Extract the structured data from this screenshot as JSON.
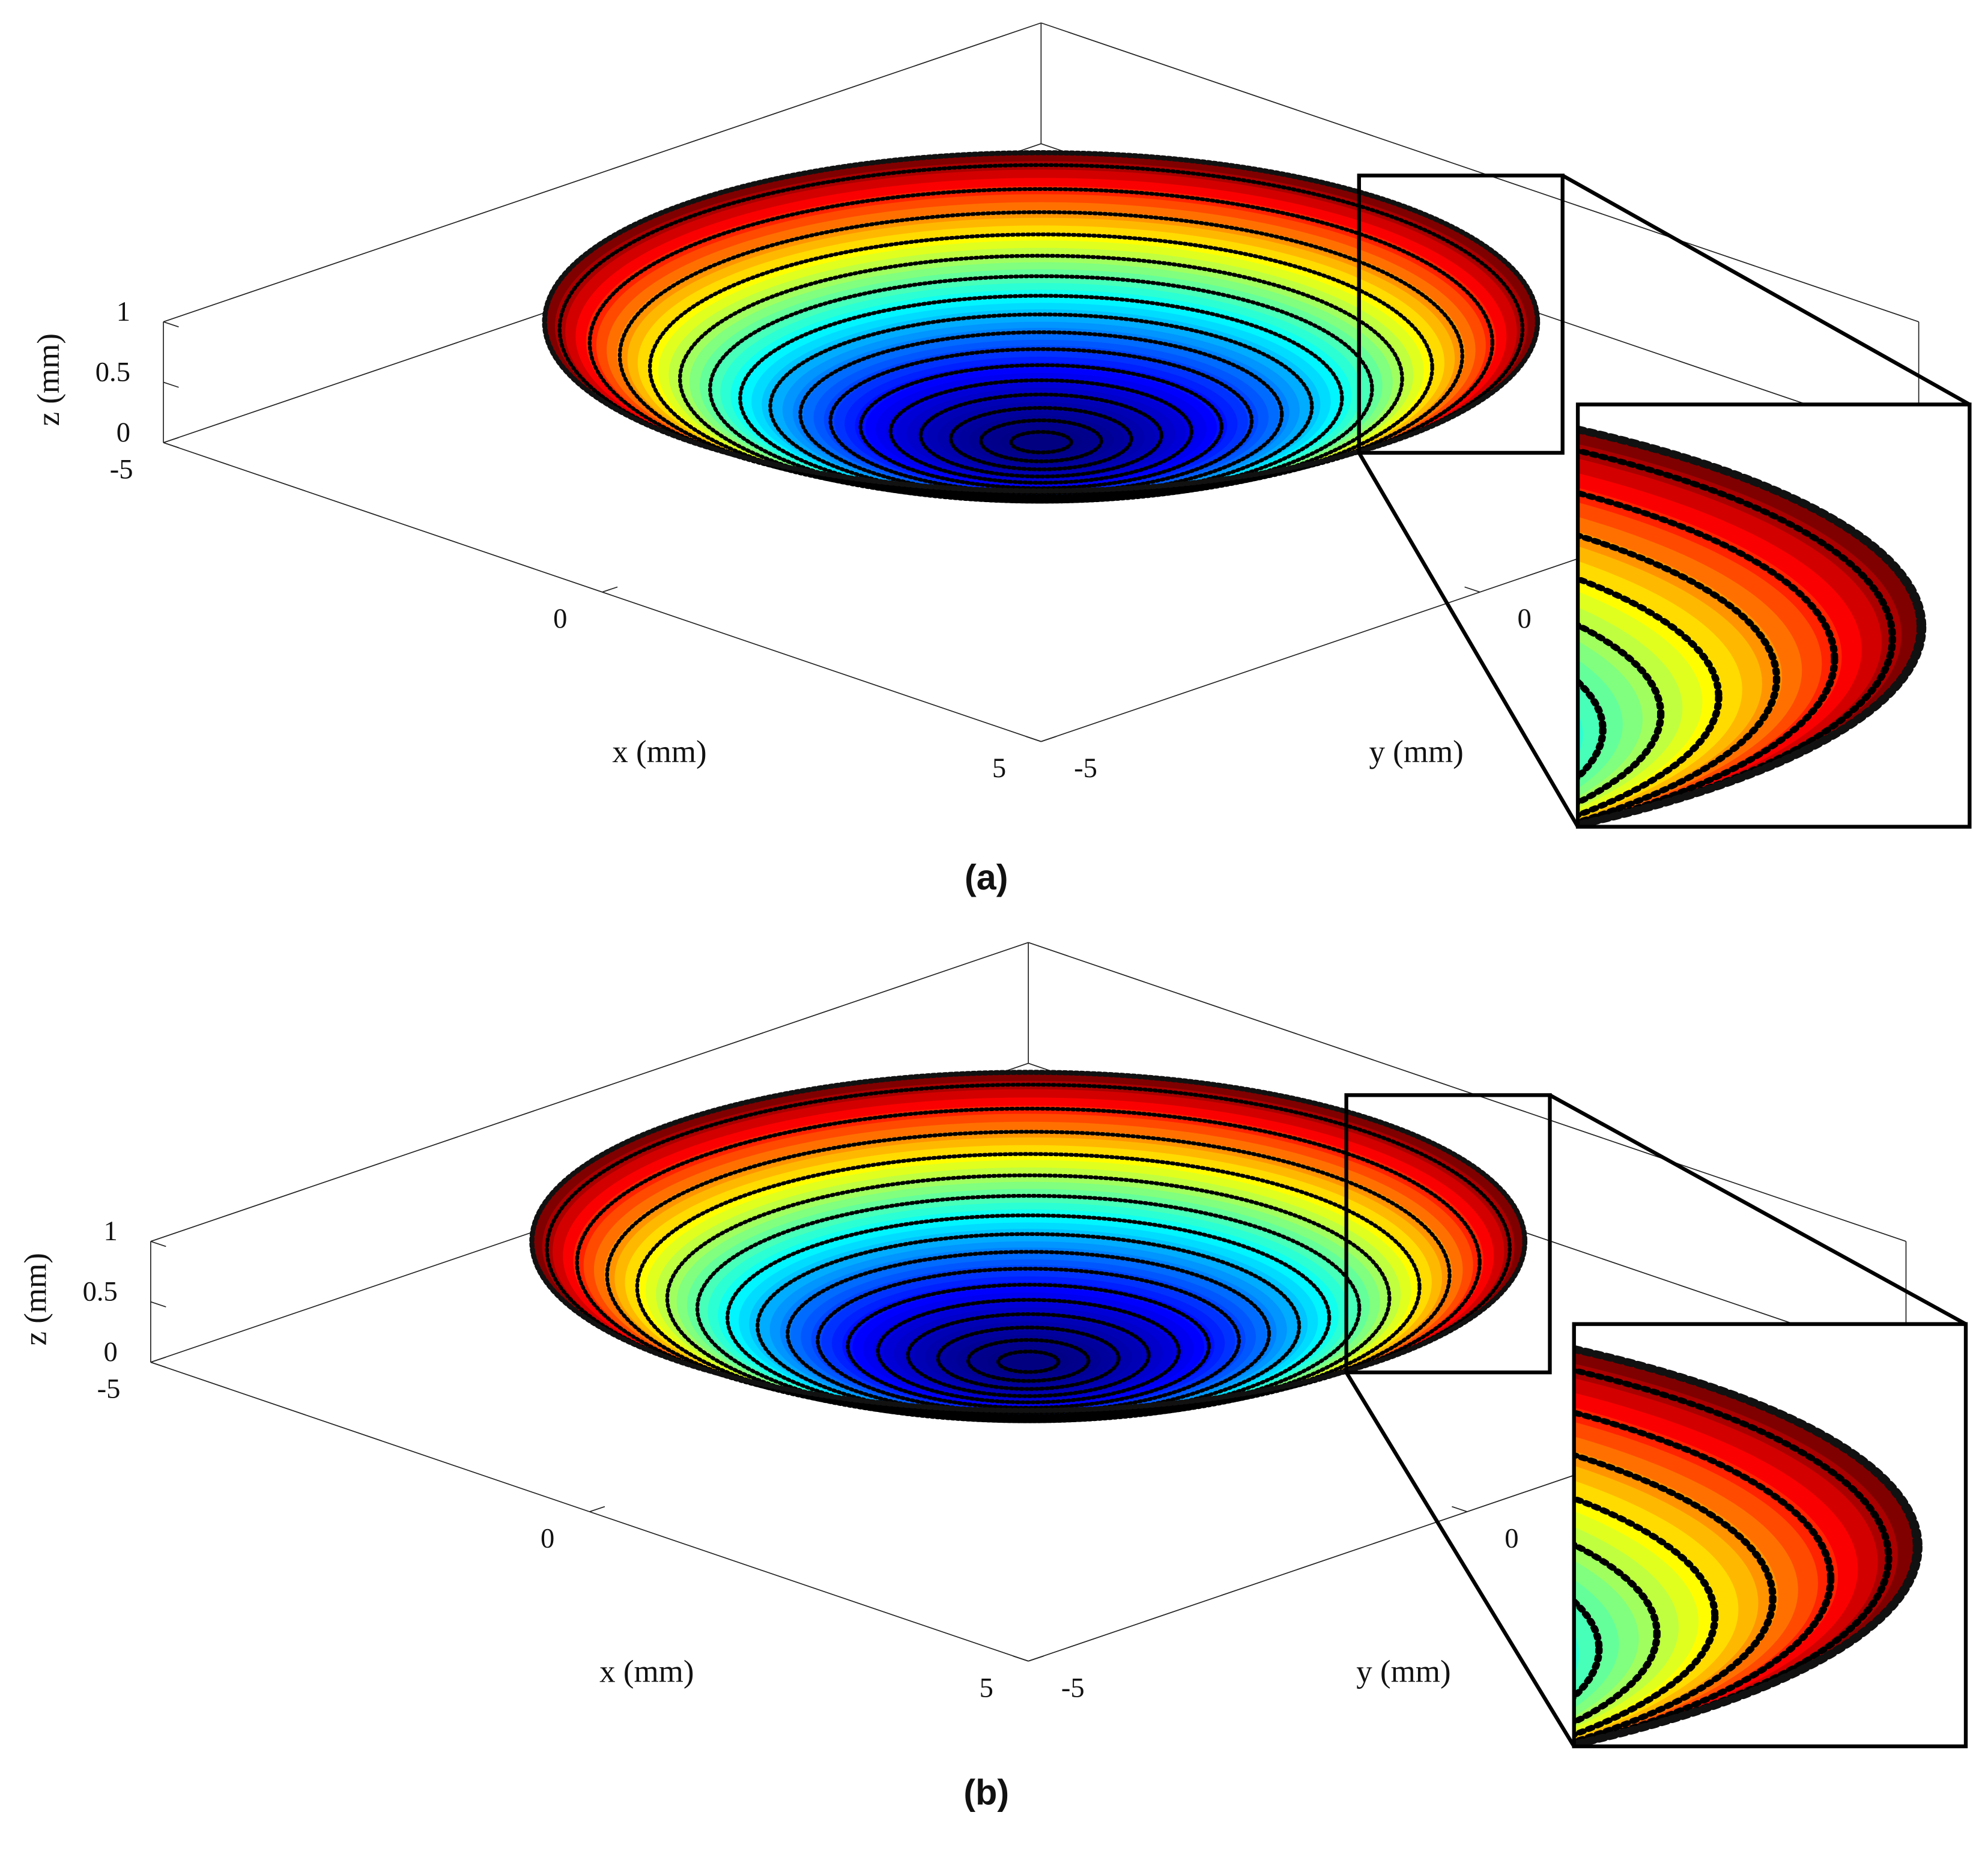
{
  "chart_data": [
    {
      "type": "surface",
      "title": "(a)",
      "xlabel": "x (mm)",
      "ylabel": "y (mm)",
      "zlabel": "z (mm)",
      "xlim": [
        -5,
        5
      ],
      "ylim": [
        -5,
        5
      ],
      "zlim": [
        0,
        1
      ],
      "xticks": [
        -5,
        0,
        5
      ],
      "yticks": [
        -5,
        0
      ],
      "zticks": [
        0,
        0.5,
        1
      ],
      "radius": 4,
      "colormap": "jet"
    },
    {
      "type": "surface",
      "title": "(b)",
      "xlabel": "x (mm)",
      "ylabel": "y (mm)",
      "zlabel": "z (mm)",
      "xlim": [
        -5,
        5
      ],
      "ylim": [
        -5,
        5
      ],
      "zlim": [
        0,
        1
      ],
      "xticks": [
        -5,
        0,
        5
      ],
      "yticks": [
        -5,
        0
      ],
      "zticks": [
        0,
        0.5,
        1
      ],
      "radius": 4,
      "colormap": "jet"
    }
  ]
}
